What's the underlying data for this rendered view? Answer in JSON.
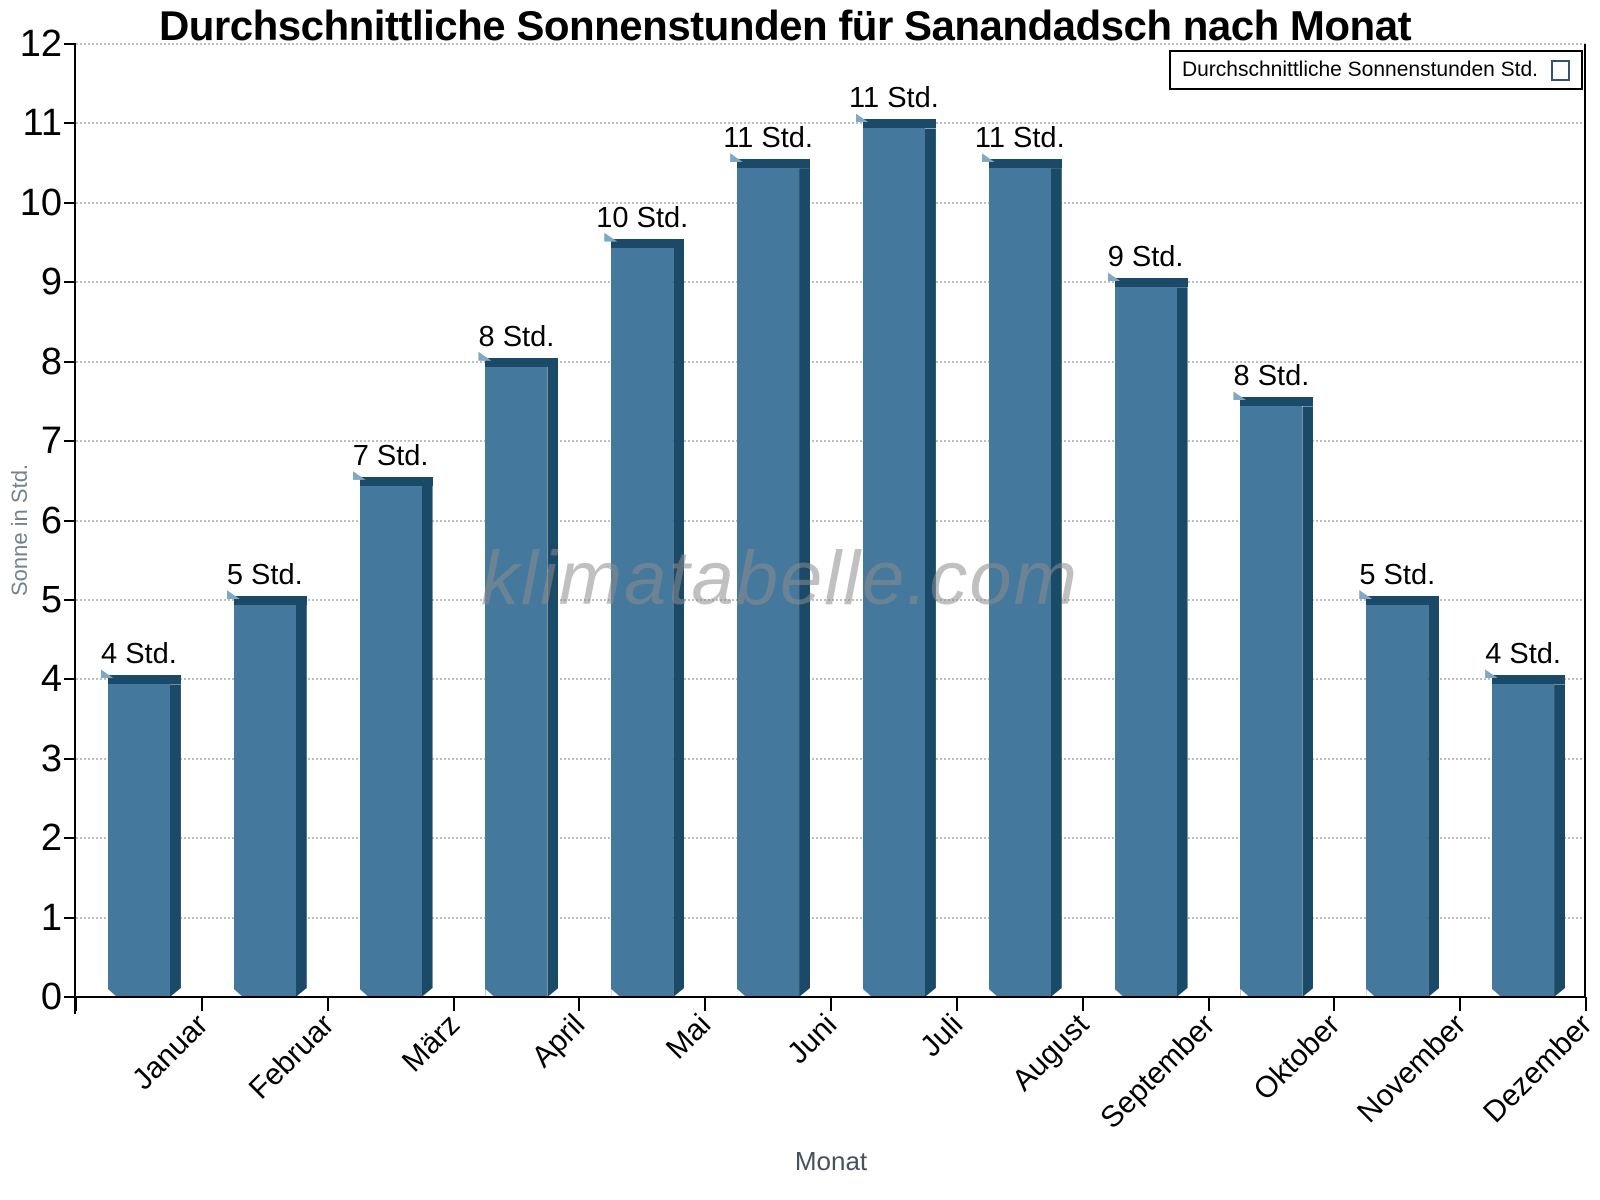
{
  "chart_data": {
    "type": "bar",
    "title": "Durchschnittliche Sonnenstunden für Sanandadsch nach Monat",
    "categories": [
      "Januar",
      "Februar",
      "März",
      "April",
      "Mai",
      "Juni",
      "Juli",
      "August",
      "September",
      "Oktober",
      "November",
      "Dezember"
    ],
    "values": [
      4.05,
      5.05,
      6.55,
      8.05,
      9.55,
      10.55,
      11.05,
      10.55,
      9.05,
      7.55,
      5.05,
      4.05
    ],
    "bar_labels": [
      "4 Std.",
      "5 Std.",
      "7 Std.",
      "8 Std.",
      "10 Std.",
      "11 Std.",
      "11 Std.",
      "11 Std.",
      "9 Std.",
      "8 Std.",
      "5 Std.",
      "4 Std."
    ],
    "xlabel": "Monat",
    "ylabel": "Sonne in Std.",
    "ylim": [
      0,
      12
    ],
    "ytick_step": 1,
    "grid": "horizontal-dotted",
    "legend": {
      "label": "Durchschnittliche Sonnenstunden Std.",
      "position": "top-right"
    },
    "watermark": "klimatabelle.com",
    "colors": {
      "bar_face": "#44789c",
      "bar_shadow": "#1b4a68",
      "bar_highlight": "#7ea9c6",
      "gridline": "#bfbfbf",
      "axis": "#000000",
      "y_axis_title": "#76828c",
      "x_axis_title": "#49525c",
      "watermark_gray": "#8c8c8c"
    }
  }
}
